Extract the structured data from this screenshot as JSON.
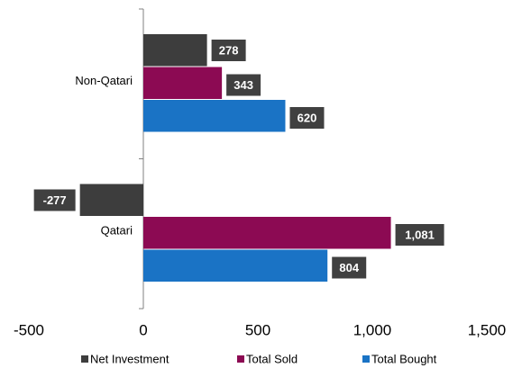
{
  "chart_data": {
    "type": "hbar",
    "categories": [
      "Non-Qatari",
      "Qatari"
    ],
    "series": [
      {
        "name": "Net Investment",
        "color": "#3d3d3d",
        "values": [
          278,
          -277
        ]
      },
      {
        "name": "Total Sold",
        "color": "#8c0a53",
        "values": [
          343,
          1081
        ],
        "value_labels": [
          "343",
          "1,081"
        ]
      },
      {
        "name": "Total Bought",
        "color": "#1a73c5",
        "values": [
          620,
          804
        ]
      }
    ],
    "xlim": [
      -500,
      1500
    ],
    "xticks": [
      -500,
      0,
      500,
      {
        "value": 1000,
        "label": "1,000"
      },
      {
        "value": 1500,
        "label": "1,500"
      }
    ],
    "label_box_color": "#404040",
    "legend": "bottom"
  }
}
